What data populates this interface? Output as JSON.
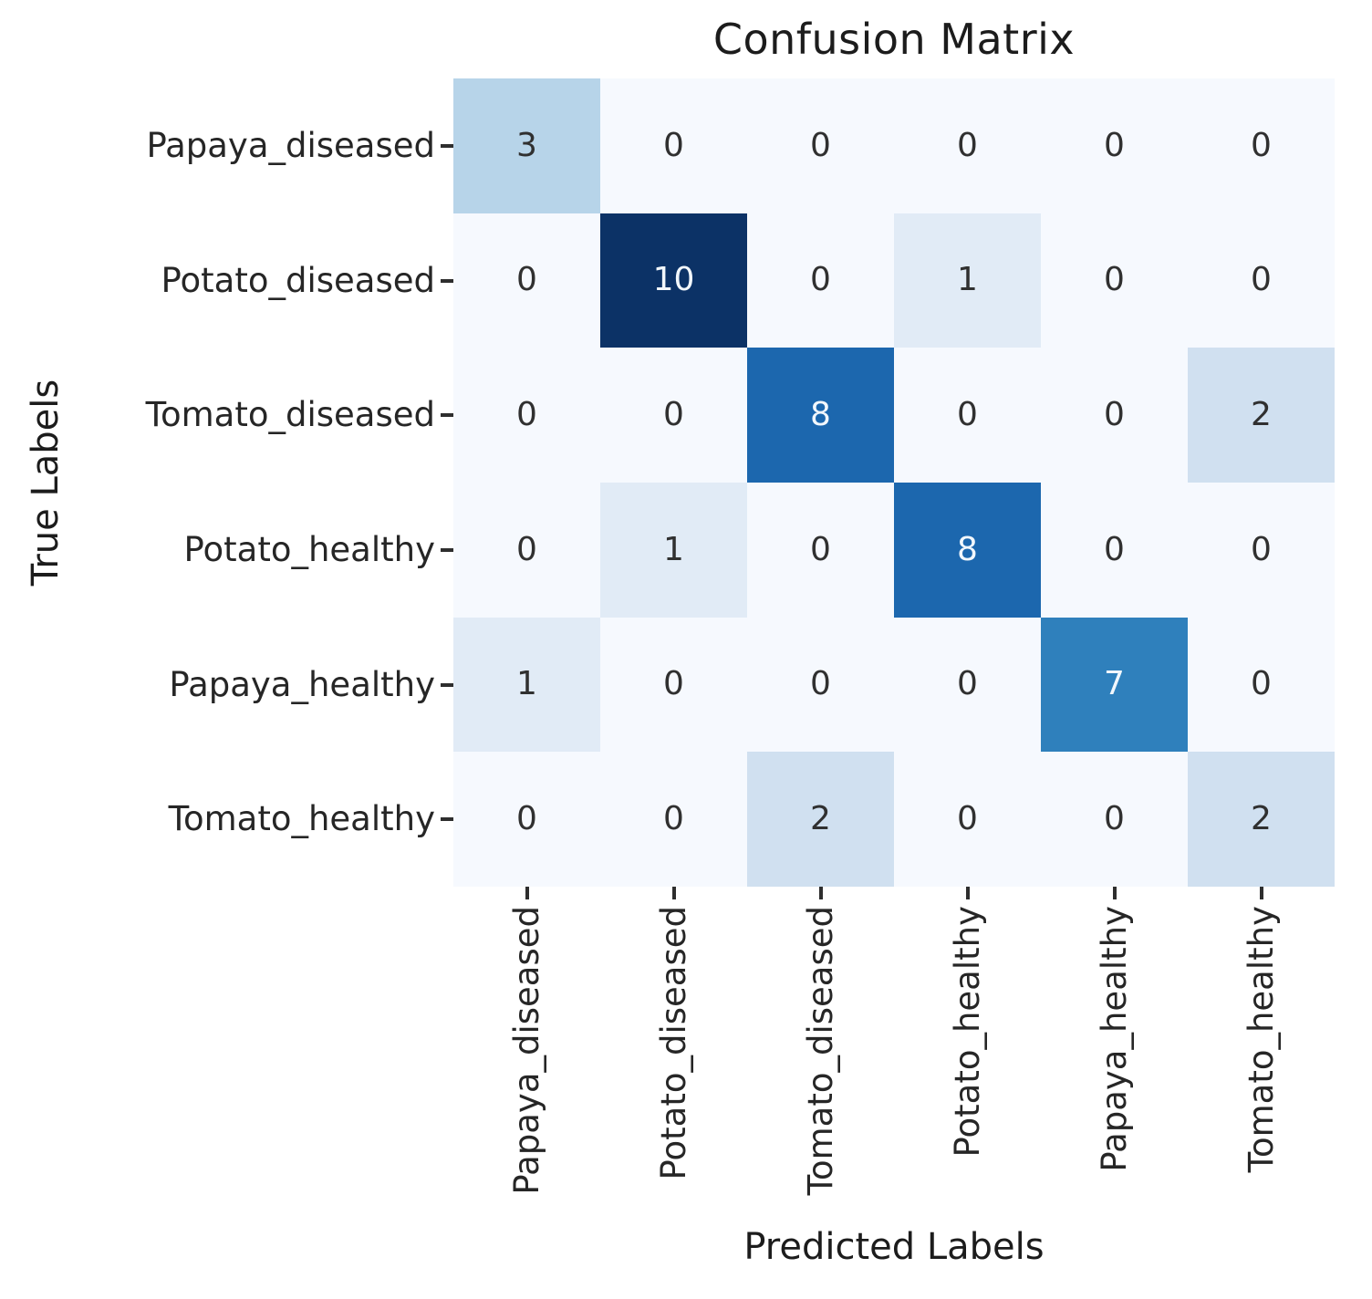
{
  "chart_data": {
    "type": "heatmap",
    "title": "Confusion Matrix",
    "xlabel": "Predicted Labels",
    "ylabel": "True Labels",
    "x_categories": [
      "Papaya_diseased",
      "Potato_diseased",
      "Tomato_diseased",
      "Potato_healthy",
      "Papaya_healthy",
      "Tomato_healthy"
    ],
    "y_categories": [
      "Papaya_diseased",
      "Potato_diseased",
      "Tomato_diseased",
      "Potato_healthy",
      "Papaya_healthy",
      "Tomato_healthy"
    ],
    "matrix": [
      [
        3,
        0,
        0,
        0,
        0,
        0
      ],
      [
        0,
        10,
        0,
        1,
        0,
        0
      ],
      [
        0,
        0,
        8,
        0,
        0,
        2
      ],
      [
        0,
        1,
        0,
        8,
        0,
        0
      ],
      [
        1,
        0,
        0,
        0,
        7,
        0
      ],
      [
        0,
        0,
        2,
        0,
        0,
        2
      ]
    ],
    "colormap": "Blues",
    "vmin": 0,
    "vmax": 10,
    "value_colors": {
      "0": "#f6f9fe",
      "1": "#e1ebf6",
      "2": "#d0e0f0",
      "3": "#b7d4e9",
      "7": "#2f80bc",
      "8": "#1c67ae",
      "10": "#0c3266"
    },
    "light_text_min_value": 7,
    "annotation_colors": {
      "dark": "#303030",
      "light": "#f2f7fc"
    },
    "grid_on": false,
    "legend": "none"
  }
}
